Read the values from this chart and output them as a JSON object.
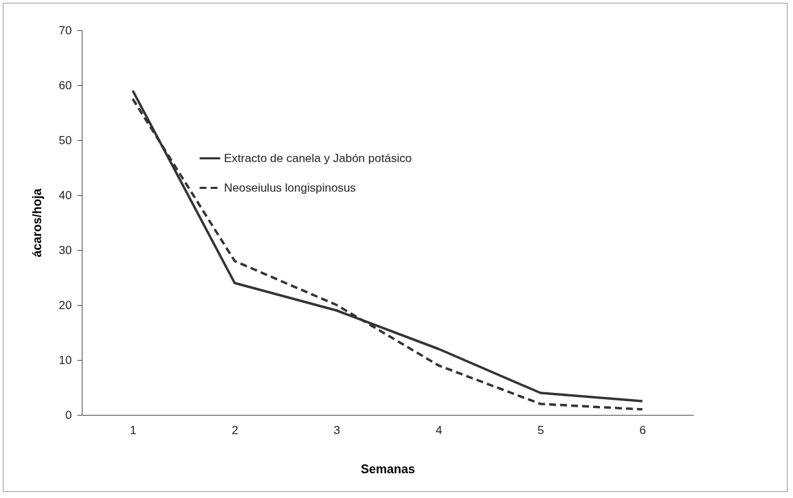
{
  "chart_data": {
    "type": "line",
    "xlabel": "Semanas",
    "ylabel": "ácaros/hoja",
    "categories": [
      "1",
      "2",
      "3",
      "4",
      "5",
      "6"
    ],
    "series": [
      {
        "name": "Extracto de canela y Jabón potásico",
        "color": "#333333",
        "line_style": "solid",
        "values": [
          59,
          24,
          19,
          12,
          4,
          2.5
        ]
      },
      {
        "name": "Neoseiulus longispinosus",
        "color": "#333333",
        "line_style": "dashed",
        "values": [
          57.5,
          28,
          20,
          9,
          2,
          1
        ]
      }
    ],
    "ylim": [
      0,
      70
    ],
    "yticks": [
      0,
      10,
      20,
      30,
      40,
      50,
      60,
      70
    ],
    "grid": false,
    "legend": "top left",
    "marker": "none"
  }
}
